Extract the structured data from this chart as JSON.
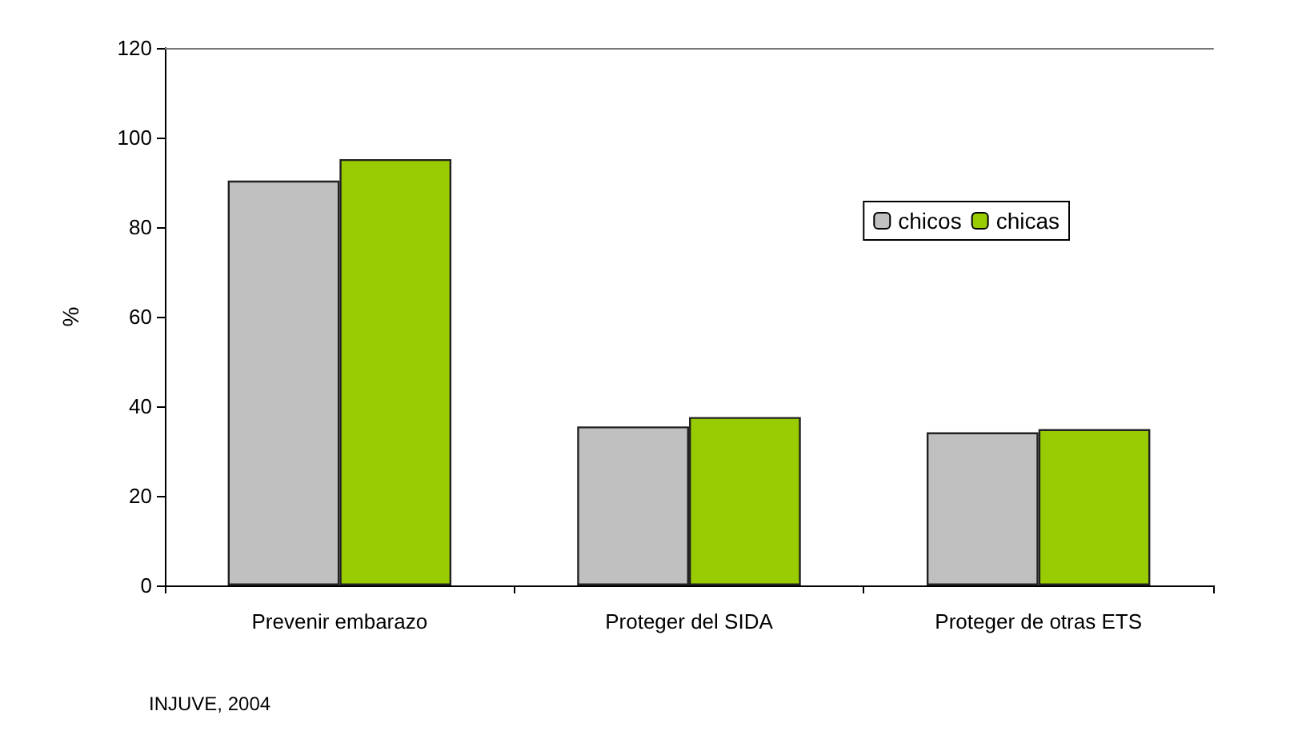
{
  "chart_data": {
    "type": "bar",
    "ylabel": "%",
    "categories": [
      "Prevenir embarazo",
      "Proteger del SIDA",
      "Proteger de otras ETS"
    ],
    "series": [
      {
        "name": "chicos",
        "color": "#c0c0c0",
        "values": [
          90.4,
          35.5,
          34.2
        ]
      },
      {
        "name": "chicas",
        "color": "#99cc00",
        "values": [
          95.2,
          37.6,
          34.9
        ]
      }
    ],
    "ylim": [
      0,
      120
    ],
    "yticks": [
      0,
      20,
      40,
      60,
      80,
      100,
      120
    ],
    "grid": false,
    "legend": "top right",
    "annotations": [
      "INJUVE, 2004"
    ]
  }
}
